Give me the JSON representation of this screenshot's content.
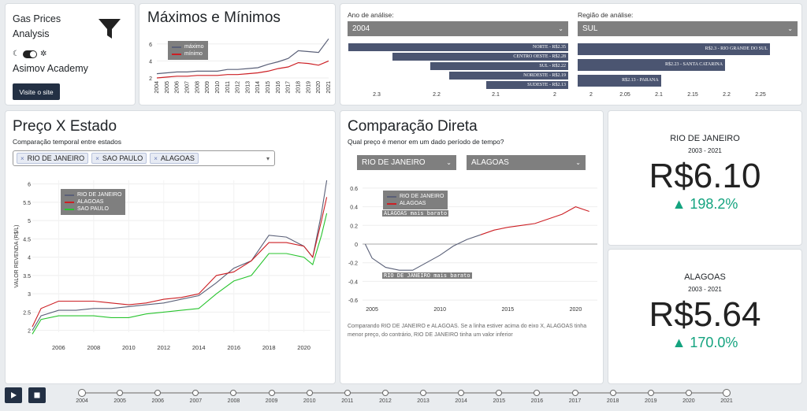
{
  "sidebar": {
    "title_line1": "Gas Prices",
    "title_line2": "Analysis",
    "brand": "Asimov Academy",
    "visit_button": "Visite o site"
  },
  "minmax": {
    "title": "Máximos e Mínimos",
    "legend_max": "máximo",
    "legend_min": "mínimo",
    "colors": {
      "max": "#5a6078",
      "min": "#cc1f24"
    }
  },
  "filters": {
    "year_label": "Ano de análise:",
    "year_value": "2004",
    "region_label": "Região de análise:",
    "region_value": "SUL"
  },
  "region_bars": {
    "bars": [
      {
        "label": "NORTE - R$2.35",
        "value": 2.35
      },
      {
        "label": "CENTRO OESTE - R$2.28",
        "value": 2.28
      },
      {
        "label": "SUL - R$2.22",
        "value": 2.22
      },
      {
        "label": "NORDESTE - R$2.19",
        "value": 2.19
      },
      {
        "label": "SUDESTE - R$2.13",
        "value": 2.13
      }
    ],
    "ticks": [
      "2.3",
      "2.2",
      "2.1",
      "2"
    ]
  },
  "state_bars": {
    "bars": [
      {
        "label": "R$2.3 - RIO GRANDE DO SUL",
        "value": 2.3
      },
      {
        "label": "R$2.23 - SANTA CATARINA",
        "value": 2.23
      },
      {
        "label": "R$2.13 - PARANA",
        "value": 2.13
      }
    ],
    "ticks": [
      "2",
      "2.05",
      "2.1",
      "2.15",
      "2.2",
      "2.25"
    ]
  },
  "price_state": {
    "title": "Preço X Estado",
    "subtitle": "Comparação temporal entre estados",
    "chips": [
      "RIO DE JANEIRO",
      "SAO PAULO",
      "ALAGOAS"
    ],
    "ylabel": "VALOR REVENDA (R$/L)"
  },
  "compare": {
    "title": "Comparação Direta",
    "subtitle": "Qual preço é menor em um dado período de tempo?",
    "state_a": "RIO DE JANEIRO",
    "state_b": "ALAGOAS",
    "annot_top": "ALAGOAS mais barato",
    "annot_bottom": "RIO DE JANEIRO mais barato",
    "note": "Comparando RIO DE JANEIRO e ALAGOAS. Se a linha estiver acima do eixo X, ALAGOAS tinha menor preço, do contrário, RIO DE JANEIRO tinha um valor inferior"
  },
  "kpi1": {
    "state": "RIO DE JANEIRO",
    "range": "2003 - 2021",
    "value": "R$6.10",
    "change": "▲ 198.2%"
  },
  "kpi2": {
    "state": "ALAGOAS",
    "range": "2003 - 2021",
    "value": "R$5.64",
    "change": "▲ 170.0%"
  },
  "timeline": {
    "years": [
      "2004",
      "2005",
      "2006",
      "2007",
      "2008",
      "2009",
      "2010",
      "2011",
      "2012",
      "2013",
      "2014",
      "2015",
      "2016",
      "2017",
      "2018",
      "2019",
      "2020",
      "2021"
    ]
  },
  "chart_data": [
    {
      "type": "line",
      "id": "minmax",
      "x": [
        2004,
        2005,
        2006,
        2007,
        2008,
        2009,
        2010,
        2011,
        2012,
        2013,
        2014,
        2015,
        2016,
        2017,
        2018,
        2019,
        2020,
        2021
      ],
      "series": [
        {
          "name": "máximo",
          "values": [
            2.5,
            2.6,
            2.7,
            2.7,
            2.8,
            2.8,
            2.8,
            3.0,
            3.0,
            3.1,
            3.2,
            3.6,
            3.9,
            4.3,
            5.2,
            5.1,
            5.0,
            6.6
          ]
        },
        {
          "name": "mínimo",
          "values": [
            2.0,
            2.1,
            2.2,
            2.2,
            2.3,
            2.3,
            2.3,
            2.4,
            2.4,
            2.5,
            2.6,
            2.8,
            3.1,
            3.3,
            3.8,
            3.7,
            3.5,
            4.0
          ]
        }
      ],
      "xlabel": "",
      "ylabel": "",
      "ylim": [
        2,
        7
      ],
      "yticks": [
        "2",
        "4",
        "6"
      ]
    },
    {
      "type": "line",
      "id": "price_state",
      "x": [
        2004.5,
        2005,
        2006,
        2007,
        2008,
        2009,
        2010,
        2011,
        2012,
        2013,
        2014,
        2015,
        2016,
        2017,
        2018,
        2019,
        2020,
        2020.5,
        2021,
        2021.3
      ],
      "series": [
        {
          "name": "RIO DE JANEIRO",
          "values": [
            2.0,
            2.4,
            2.55,
            2.55,
            2.6,
            2.6,
            2.65,
            2.7,
            2.75,
            2.85,
            2.95,
            3.3,
            3.7,
            3.9,
            4.6,
            4.55,
            4.3,
            4.0,
            5.2,
            6.1
          ]
        },
        {
          "name": "ALAGOAS",
          "values": [
            2.1,
            2.6,
            2.8,
            2.8,
            2.8,
            2.75,
            2.7,
            2.75,
            2.85,
            2.9,
            3.0,
            3.5,
            3.6,
            3.9,
            4.4,
            4.4,
            4.3,
            4.0,
            5.0,
            5.64
          ]
        },
        {
          "name": "SAO PAULO",
          "values": [
            1.9,
            2.3,
            2.4,
            2.4,
            2.4,
            2.35,
            2.35,
            2.45,
            2.5,
            2.55,
            2.6,
            3.0,
            3.35,
            3.5,
            4.1,
            4.1,
            4.0,
            3.8,
            4.6,
            5.2
          ]
        }
      ],
      "xticks": [
        "2006",
        "2008",
        "2010",
        "2012",
        "2014",
        "2016",
        "2018",
        "2020"
      ],
      "yticks": [
        "2",
        "2.5",
        "3",
        "3.5",
        "4",
        "4.5",
        "5",
        "5.5",
        "6"
      ],
      "ylim": [
        1.95,
        6.1
      ]
    },
    {
      "type": "line",
      "id": "compare",
      "x": [
        2004.5,
        2005,
        2006,
        2007,
        2008,
        2009,
        2010,
        2011,
        2012,
        2013,
        2014,
        2015,
        2016,
        2017,
        2018,
        2019,
        2020,
        2021
      ],
      "series": [
        {
          "name": "RIO DE JANEIRO",
          "values": [
            0.0,
            -0.15,
            -0.25,
            -0.28,
            -0.28,
            -0.2,
            -0.12,
            -0.02,
            0.05,
            0.1,
            0.15,
            0.18,
            0.2,
            0.22,
            0.27,
            0.32,
            0.4,
            0.35
          ]
        }
      ],
      "xticks": [
        "2005",
        "2010",
        "2015",
        "2020"
      ],
      "yticks": [
        "-0.6",
        "-0.4",
        "-0.2",
        "0",
        "0.2",
        "0.4",
        "0.6"
      ],
      "ylim": [
        -0.65,
        0.65
      ]
    }
  ]
}
